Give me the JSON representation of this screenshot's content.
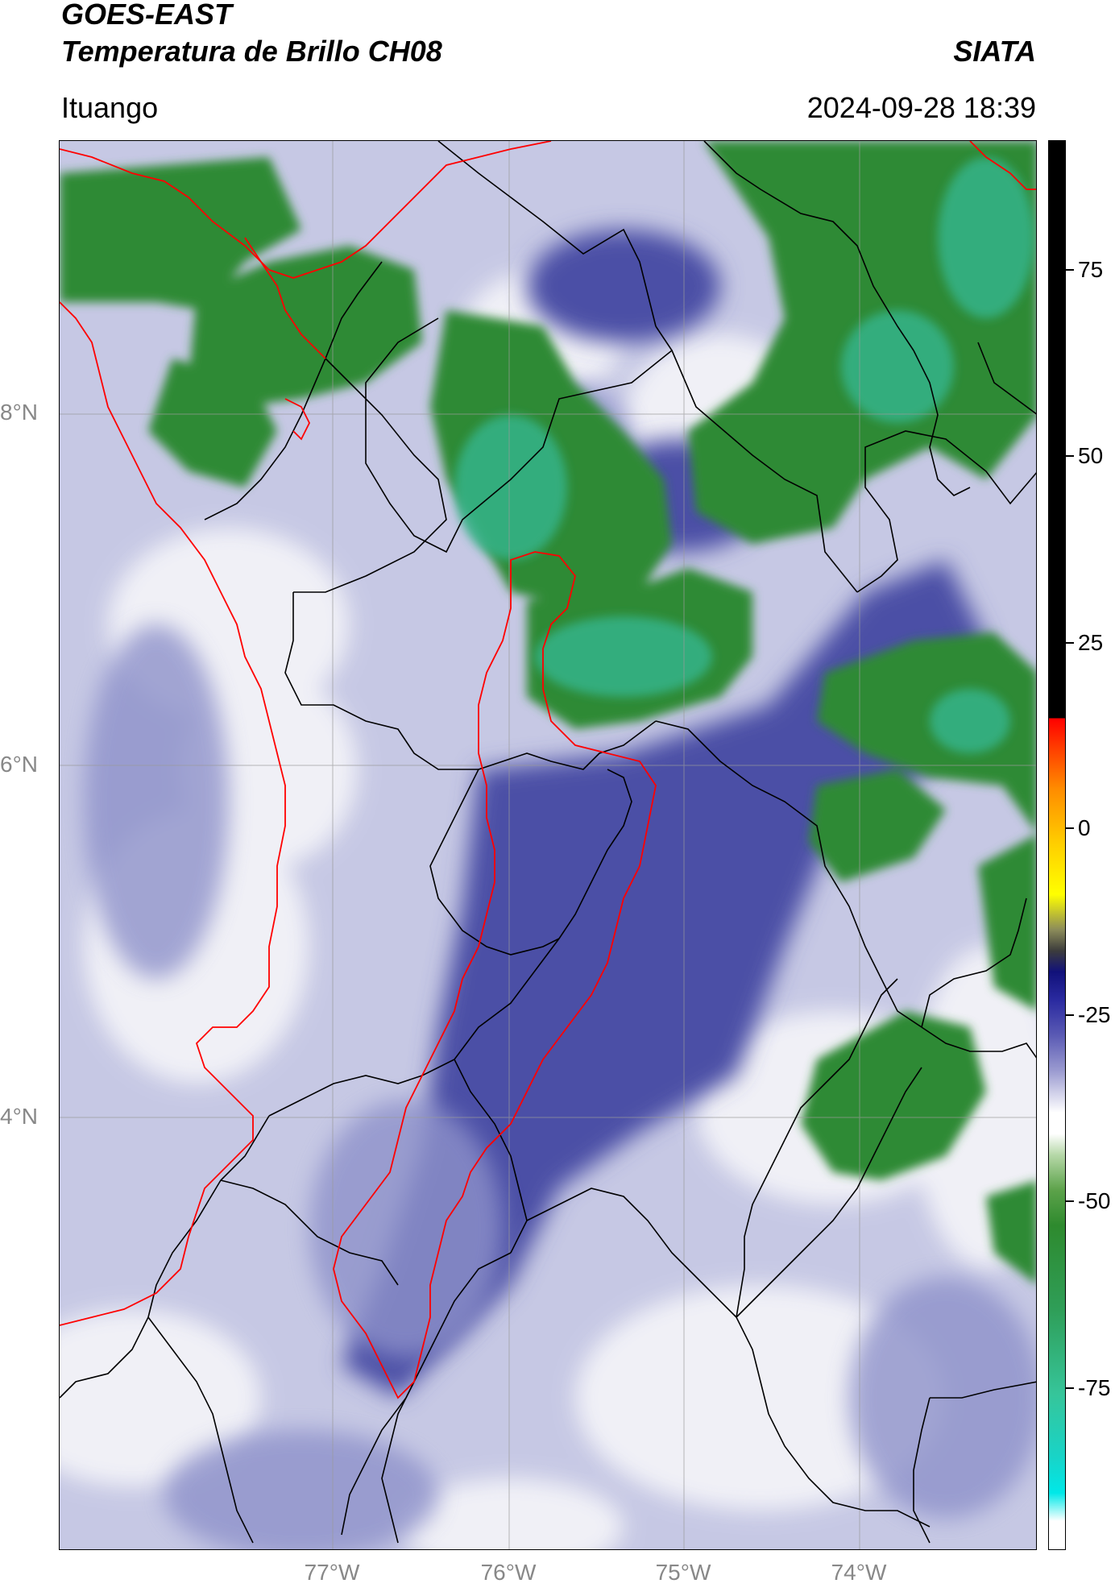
{
  "header": {
    "title_line1": "GOES-EAST",
    "title_line2": "Temperatura de Brillo CH08",
    "organization": "SIATA",
    "region": "Ituango",
    "datetime": "2024-09-28 18:39"
  },
  "map": {
    "lat_labels": [
      "8°N",
      "6°N",
      "4°N"
    ],
    "lon_labels": [
      "77°W",
      "76°W",
      "75°W",
      "74°W"
    ],
    "colors": {
      "cold_cloud_green": "#2e8b3a",
      "cold_cloud_teal": "#33c29a",
      "mid_blue": "#4a4fa8",
      "light_blue": "#a8acd6",
      "clear_white": "#f2f2f8",
      "coastline": "#ff0000",
      "admin_border": "#000000",
      "grid": "#9a9a9a"
    }
  },
  "colorbar": {
    "label": "",
    "ticks": [
      "75",
      "50",
      "25",
      "0",
      "-25",
      "-50",
      "-75"
    ]
  }
}
